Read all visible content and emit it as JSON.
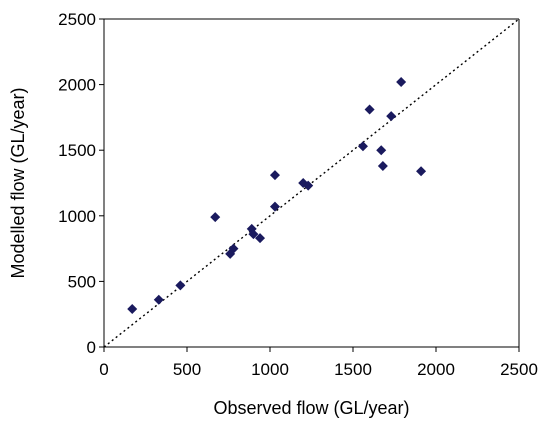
{
  "chart_data": {
    "type": "scatter",
    "title": "",
    "xlabel": "Observed flow (GL/year)",
    "ylabel": "Modelled flow (GL/year)",
    "xlim": [
      0,
      2500
    ],
    "ylim": [
      0,
      2500
    ],
    "xticks": [
      0,
      500,
      1000,
      1500,
      2000,
      2500
    ],
    "yticks": [
      0,
      500,
      1000,
      1500,
      2000,
      2500
    ],
    "grid": false,
    "legend": "none",
    "reference_line": {
      "style": "dotted",
      "from": [
        0,
        0
      ],
      "to": [
        2500,
        2500
      ]
    },
    "marker": {
      "shape": "diamond",
      "color": "#1a1a5e"
    },
    "series": [
      {
        "points": [
          {
            "x": 170,
            "y": 290
          },
          {
            "x": 330,
            "y": 360
          },
          {
            "x": 460,
            "y": 470
          },
          {
            "x": 670,
            "y": 990
          },
          {
            "x": 760,
            "y": 710
          },
          {
            "x": 780,
            "y": 750
          },
          {
            "x": 890,
            "y": 900
          },
          {
            "x": 900,
            "y": 860
          },
          {
            "x": 940,
            "y": 830
          },
          {
            "x": 1030,
            "y": 1310
          },
          {
            "x": 1030,
            "y": 1070
          },
          {
            "x": 1200,
            "y": 1250
          },
          {
            "x": 1230,
            "y": 1230
          },
          {
            "x": 1560,
            "y": 1530
          },
          {
            "x": 1600,
            "y": 1810
          },
          {
            "x": 1670,
            "y": 1500
          },
          {
            "x": 1680,
            "y": 1380
          },
          {
            "x": 1730,
            "y": 1760
          },
          {
            "x": 1790,
            "y": 2020
          },
          {
            "x": 1910,
            "y": 1340
          }
        ]
      }
    ]
  }
}
